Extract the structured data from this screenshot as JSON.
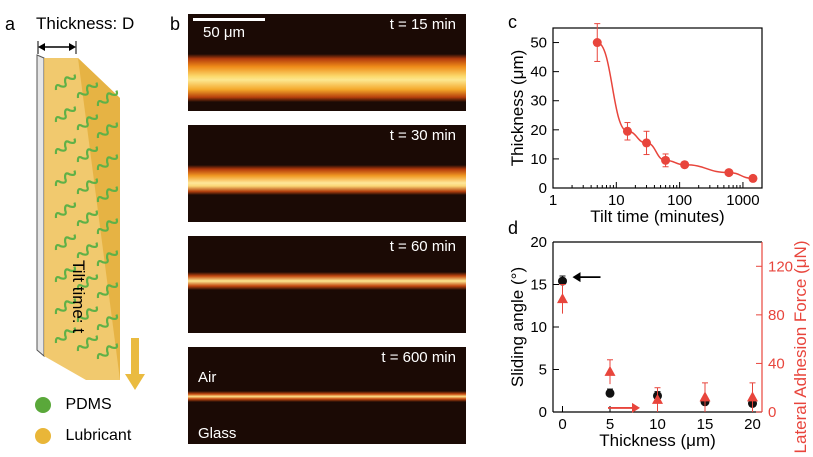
{
  "panel_a": {
    "letter": "a",
    "thickness_label": "Thickness: D",
    "tilt_label": "Tilt time: t",
    "legend": [
      {
        "label": "PDMS",
        "color": "#5aa83a"
      },
      {
        "label": "Lubricant",
        "color": "#e9b638"
      }
    ]
  },
  "panel_b": {
    "letter": "b",
    "scale_bar": "50 μm",
    "images": [
      {
        "time": "t = 15 min"
      },
      {
        "time": "t = 30 min"
      },
      {
        "time": "t = 60 min"
      },
      {
        "time": "t = 600 min",
        "top_note": "Air",
        "bottom_note": "Glass"
      }
    ]
  },
  "chart_data": [
    {
      "panel": "c",
      "type": "scatter",
      "xlabel": "Tilt time (minutes)",
      "ylabel": "Thickness (μm)",
      "xscale": "log",
      "xlim": [
        1,
        2000
      ],
      "ylim": [
        0,
        55
      ],
      "xticks": [
        "1",
        "10",
        "100",
        "1000"
      ],
      "yticks": [
        "0",
        "10",
        "20",
        "30",
        "40",
        "50"
      ],
      "color": "#e8453c",
      "series": [
        {
          "x": [
            5,
            15,
            30,
            60,
            120,
            600,
            1440
          ],
          "y": [
            50,
            19.5,
            15.5,
            9.5,
            8,
            5.3,
            3.3
          ],
          "err": [
            6.5,
            3,
            4,
            2.2,
            1,
            0.5,
            0.5
          ]
        }
      ],
      "fit": true
    },
    {
      "panel": "d",
      "type": "scatter",
      "xlabel": "Thickness (μm)",
      "ylabel": "Sliding angle (°)",
      "ylabel_right": "Lateral Adhesion Force (μN)",
      "xlim": [
        -1,
        21
      ],
      "ylim": [
        0,
        20
      ],
      "ylim_right": [
        0,
        140
      ],
      "xticks": [
        "0",
        "5",
        "10",
        "15",
        "20"
      ],
      "yticks": [
        "0",
        "5",
        "10",
        "15",
        "20"
      ],
      "yticks_right": [
        "0",
        "40",
        "80",
        "120"
      ],
      "series": [
        {
          "axis": "left",
          "marker": "circle",
          "color": "#111111",
          "x": [
            0,
            5,
            10,
            15,
            20
          ],
          "y": [
            15.4,
            2.2,
            1.9,
            1.2,
            1.0
          ],
          "err": [
            0.6,
            0.5,
            0.5,
            0.4,
            0.5
          ]
        },
        {
          "axis": "right",
          "marker": "triangle",
          "color": "#e8453c",
          "x": [
            0,
            5,
            10,
            15,
            20
          ],
          "y": [
            93,
            33,
            10,
            12,
            12
          ],
          "err": [
            12,
            10,
            10,
            12,
            12
          ]
        }
      ]
    }
  ]
}
